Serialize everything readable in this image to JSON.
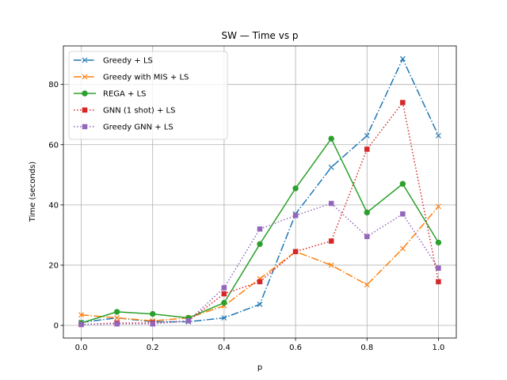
{
  "chart_data": {
    "type": "line",
    "title": "SW — Time vs p",
    "xlabel": "p",
    "ylabel": "Time (seconds)",
    "xlim": [
      -0.05,
      1.05
    ],
    "ylim": [
      -4.2,
      92.8
    ],
    "xticks": [
      0.0,
      0.2,
      0.4,
      0.6,
      0.8,
      1.0
    ],
    "xtick_labels": [
      "0.0",
      "0.2",
      "0.4",
      "0.6",
      "0.8",
      "1.0"
    ],
    "yticks": [
      0,
      20,
      40,
      60,
      80
    ],
    "ytick_labels": [
      "0",
      "20",
      "40",
      "60",
      "80"
    ],
    "grid": true,
    "legend_location": "upper-left",
    "x": [
      0.0,
      0.1,
      0.2,
      0.3,
      0.4,
      0.5,
      0.6,
      0.7,
      0.8,
      0.9,
      1.0
    ],
    "series": [
      {
        "name": "Greedy + LS",
        "color": "#1f77b4",
        "linestyle": "dashdot",
        "marker": "x",
        "values": [
          1.0,
          2.5,
          1.2,
          1.2,
          2.5,
          7.0,
          37.0,
          52.5,
          63.0,
          88.5,
          63.0
        ]
      },
      {
        "name": "Greedy with MIS + LS",
        "color": "#ff7f0e",
        "linestyle": "dashdot",
        "marker": "x",
        "values": [
          3.5,
          2.5,
          1.5,
          2.5,
          6.5,
          15.5,
          24.5,
          20.0,
          13.5,
          25.5,
          39.5
        ]
      },
      {
        "name": "REGA + LS",
        "color": "#2ca02c",
        "linestyle": "solid",
        "marker": "circle",
        "values": [
          0.8,
          4.5,
          3.8,
          2.5,
          7.5,
          27.0,
          45.5,
          62.0,
          37.5,
          47.0,
          27.5
        ]
      },
      {
        "name": "GNN (1 shot) + LS",
        "color": "#d62728",
        "linestyle": "dotted",
        "marker": "square",
        "values": [
          0.3,
          0.8,
          0.8,
          1.5,
          10.5,
          14.5,
          24.5,
          28.0,
          58.5,
          74.0,
          14.5
        ]
      },
      {
        "name": "Greedy GNN + LS",
        "color": "#9467bd",
        "linestyle": "dotted",
        "marker": "square",
        "values": [
          0.3,
          0.5,
          0.5,
          1.5,
          12.5,
          32.0,
          36.5,
          40.5,
          29.5,
          37.0,
          19.0
        ]
      }
    ]
  }
}
